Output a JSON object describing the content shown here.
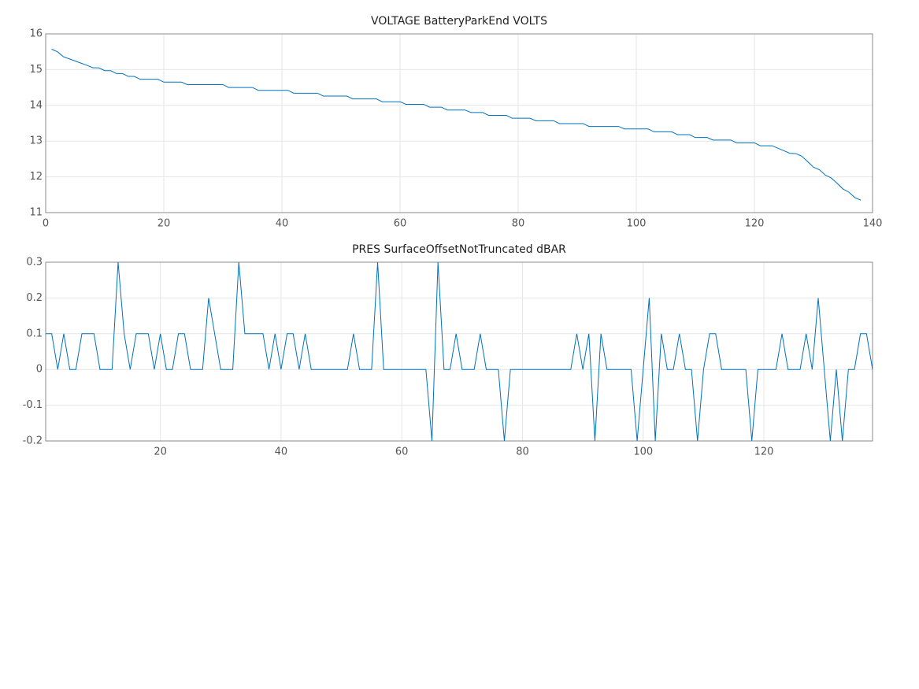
{
  "chart_data": [
    {
      "type": "line",
      "title": "VOLTAGE BatteryParkEnd VOLTS",
      "color": "#0072bd",
      "grid": true,
      "xlim": [
        0,
        140
      ],
      "xticks": [
        0,
        20,
        40,
        60,
        80,
        100,
        120,
        140
      ],
      "ylim": [
        11,
        16
      ],
      "yticks": [
        11,
        12,
        13,
        14,
        15,
        16
      ],
      "x": [
        1,
        2,
        3,
        4,
        5,
        6,
        7,
        8,
        9,
        10,
        11,
        12,
        13,
        14,
        15,
        16,
        17,
        18,
        19,
        20,
        21,
        22,
        23,
        24,
        25,
        26,
        27,
        28,
        29,
        30,
        31,
        32,
        33,
        34,
        35,
        36,
        37,
        38,
        39,
        40,
        41,
        42,
        43,
        44,
        45,
        46,
        47,
        48,
        49,
        50,
        51,
        52,
        53,
        54,
        55,
        56,
        57,
        58,
        59,
        60,
        61,
        62,
        63,
        64,
        65,
        66,
        67,
        68,
        69,
        70,
        71,
        72,
        73,
        74,
        75,
        76,
        77,
        78,
        79,
        80,
        81,
        82,
        83,
        84,
        85,
        86,
        87,
        88,
        89,
        90,
        91,
        92,
        93,
        94,
        95,
        96,
        97,
        98,
        99,
        100,
        101,
        102,
        103,
        104,
        105,
        106,
        107,
        108,
        109,
        110,
        111,
        112,
        113,
        114,
        115,
        116,
        117,
        118,
        119,
        120,
        121,
        122,
        123,
        124,
        125,
        126,
        127,
        128,
        129,
        130,
        131,
        132,
        133,
        134,
        135,
        136,
        137,
        138
      ],
      "values": [
        15.57,
        15.5,
        15.36,
        15.3,
        15.24,
        15.18,
        15.12,
        15.05,
        15.05,
        14.97,
        14.97,
        14.89,
        14.89,
        14.81,
        14.81,
        14.73,
        14.73,
        14.73,
        14.73,
        14.65,
        14.65,
        14.65,
        14.65,
        14.58,
        14.58,
        14.58,
        14.58,
        14.58,
        14.58,
        14.58,
        14.5,
        14.5,
        14.5,
        14.5,
        14.5,
        14.42,
        14.42,
        14.42,
        14.42,
        14.42,
        14.42,
        14.34,
        14.34,
        14.34,
        14.34,
        14.34,
        14.26,
        14.26,
        14.26,
        14.26,
        14.26,
        14.18,
        14.18,
        14.18,
        14.18,
        14.18,
        14.1,
        14.1,
        14.1,
        14.1,
        14.03,
        14.03,
        14.03,
        14.03,
        13.95,
        13.95,
        13.95,
        13.87,
        13.87,
        13.87,
        13.87,
        13.8,
        13.8,
        13.8,
        13.72,
        13.72,
        13.72,
        13.72,
        13.64,
        13.64,
        13.64,
        13.64,
        13.57,
        13.57,
        13.57,
        13.57,
        13.49,
        13.49,
        13.49,
        13.49,
        13.49,
        13.41,
        13.41,
        13.41,
        13.41,
        13.41,
        13.41,
        13.34,
        13.34,
        13.34,
        13.34,
        13.34,
        13.26,
        13.26,
        13.26,
        13.26,
        13.18,
        13.18,
        13.18,
        13.1,
        13.1,
        13.1,
        13.03,
        13.03,
        13.03,
        13.03,
        12.95,
        12.95,
        12.95,
        12.95,
        12.87,
        12.87,
        12.87,
        12.8,
        12.73,
        12.66,
        12.65,
        12.58,
        12.43,
        12.27,
        12.2,
        12.05,
        11.97,
        11.82,
        11.66,
        11.57,
        11.42,
        11.35
      ]
    },
    {
      "type": "line",
      "title": "PRES SurfaceOffsetNotTruncated dBAR",
      "color": "#0072bd",
      "grid": true,
      "xlim": [
        1,
        138
      ],
      "xticks": [
        20,
        40,
        60,
        80,
        100,
        120
      ],
      "ylim": [
        -0.2,
        0.3
      ],
      "yticks": [
        -0.2,
        -0.1,
        0,
        0.1,
        0.2,
        0.3
      ],
      "x": [
        1,
        2,
        3,
        4,
        5,
        6,
        7,
        8,
        9,
        10,
        11,
        12,
        13,
        14,
        15,
        16,
        17,
        18,
        19,
        20,
        21,
        22,
        23,
        24,
        25,
        26,
        27,
        28,
        29,
        30,
        31,
        32,
        33,
        34,
        35,
        36,
        37,
        38,
        39,
        40,
        41,
        42,
        43,
        44,
        45,
        46,
        47,
        48,
        49,
        50,
        51,
        52,
        53,
        54,
        55,
        56,
        57,
        58,
        59,
        60,
        61,
        62,
        63,
        64,
        65,
        66,
        67,
        68,
        69,
        70,
        71,
        72,
        73,
        74,
        75,
        76,
        77,
        78,
        79,
        80,
        81,
        82,
        83,
        84,
        85,
        86,
        87,
        88,
        89,
        90,
        91,
        92,
        93,
        94,
        95,
        96,
        97,
        98,
        99,
        100,
        101,
        102,
        103,
        104,
        105,
        106,
        107,
        108,
        109,
        110,
        111,
        112,
        113,
        114,
        115,
        116,
        117,
        118,
        119,
        120,
        121,
        122,
        123,
        124,
        125,
        126,
        127,
        128,
        129,
        130,
        131,
        132,
        133,
        134,
        135,
        136,
        137,
        138
      ],
      "values": [
        0.1,
        0.1,
        0,
        0.1,
        0,
        0,
        0.1,
        0.1,
        0.1,
        0,
        0,
        0,
        0.3,
        0.1,
        0,
        0.1,
        0.1,
        0.1,
        0,
        0.1,
        0,
        0,
        0.1,
        0.1,
        0,
        0,
        0,
        0.2,
        0.1,
        0,
        0,
        0,
        0.3,
        0.1,
        0.1,
        0.1,
        0.1,
        0,
        0.1,
        0,
        0.1,
        0.1,
        0,
        0.1,
        0,
        0,
        0,
        0,
        0,
        0,
        0,
        0.1,
        0,
        0,
        0,
        0.3,
        0,
        0,
        0,
        0,
        0,
        0,
        0,
        0,
        -0.2,
        0.3,
        0,
        0,
        0.1,
        0,
        0,
        0,
        0.1,
        0,
        0,
        0,
        -0.2,
        0,
        0,
        0,
        0,
        0,
        0,
        0,
        0,
        0,
        0,
        0,
        0.1,
        0,
        0.1,
        -0.2,
        0.1,
        0,
        0,
        0,
        0,
        0,
        -0.2,
        0,
        0.2,
        -0.2,
        0.1,
        0,
        0,
        0.1,
        0,
        0,
        -0.2,
        0,
        0.1,
        0.1,
        0,
        0,
        0,
        0,
        0,
        -0.2,
        0,
        0,
        0,
        0,
        0.1,
        0,
        0,
        0,
        0.1,
        0,
        0.2,
        0,
        -0.2,
        0,
        -0.2,
        0,
        0,
        0.1,
        0.1,
        0
      ]
    }
  ]
}
